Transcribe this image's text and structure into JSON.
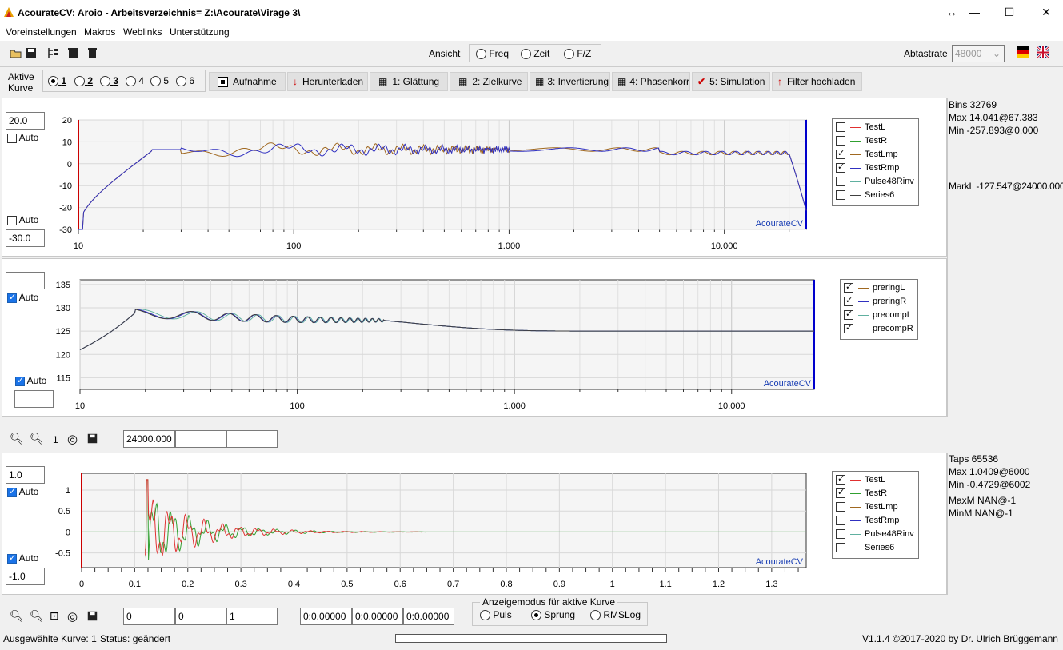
{
  "window": {
    "title": "AcourateCV:  Aroio   -   Arbeitsverzeichnis= Z:\\Acourate\\Virage 3\\",
    "controls": {
      "restore": "↔",
      "minimize": "—",
      "maximize": "☐",
      "close": "✕"
    }
  },
  "menu": [
    "Voreinstellungen",
    "Makros",
    "Weblinks",
    "Unterstützung"
  ],
  "toolbar": {
    "ansicht_label": "Ansicht",
    "ansicht_options": [
      "Freq",
      "Zeit",
      "F/Z"
    ],
    "abtastrate_label": "Abtastrate",
    "abtastrate_value": "48000"
  },
  "curve_select": {
    "label_line1": "Aktive",
    "label_line2": "Kurve",
    "options": [
      "1",
      "2",
      "3",
      "4",
      "5",
      "6"
    ],
    "selected": "1"
  },
  "steps": [
    "Aufnahme",
    "Herunterladen",
    "1: Glättung",
    "2: Zielkurve",
    "3: Invertierung",
    "4: Phasenkorr",
    "5: Simulation",
    "Filter hochladen"
  ],
  "plot1": {
    "ymax_value": "20.0",
    "ymin_value": "-30.0",
    "auto_label": "Auto",
    "watermark": "AcourateCV",
    "yticks": [
      "20",
      "10",
      "0",
      "-10",
      "-20",
      "-30"
    ],
    "xticks": [
      "10",
      "100",
      "1.000",
      "10.000"
    ],
    "legend": [
      {
        "name": "TestL",
        "color": "#e03030",
        "checked": false
      },
      {
        "name": "TestR",
        "color": "#30a030",
        "checked": false
      },
      {
        "name": "TestLmp",
        "color": "#a06820",
        "checked": true
      },
      {
        "name": "TestRmp",
        "color": "#3030c0",
        "checked": true
      },
      {
        "name": "Pulse48Rinv",
        "color": "#60b0a0",
        "checked": false
      },
      {
        "name": "Series6",
        "color": "#404040",
        "checked": false
      }
    ],
    "info": [
      "Bins 32769",
      "Max 14.041@67.383",
      "Min -257.893@0.000",
      "MarkL -127.547@24000.000"
    ]
  },
  "plot2": {
    "auto_label": "Auto",
    "watermark": "AcourateCV",
    "yticks": [
      "135",
      "130",
      "125",
      "120",
      "115"
    ],
    "xticks": [
      "10",
      "100",
      "1.000",
      "10.000"
    ],
    "legend": [
      {
        "name": "preringL",
        "color": "#a06820",
        "checked": true
      },
      {
        "name": "preringR",
        "color": "#3030c0",
        "checked": true
      },
      {
        "name": "precompL",
        "color": "#60b0a0",
        "checked": true
      },
      {
        "name": "precompR",
        "color": "#404040",
        "checked": true
      }
    ]
  },
  "mid_toolbar": {
    "zoom_level": "1",
    "fields": [
      "24000.000",
      "",
      ""
    ]
  },
  "plot3": {
    "ymax_value": "1.0",
    "ymin_value": "-1.0",
    "auto_label": "Auto",
    "watermark": "AcourateCV",
    "yticks": [
      "1",
      "0.5",
      "0",
      "-0.5"
    ],
    "xticks": [
      "0",
      "0.1",
      "0.2",
      "0.3",
      "0.4",
      "0.5",
      "0.6",
      "0.7",
      "0.8",
      "0.9",
      "1",
      "1.1",
      "1.2",
      "1.3"
    ],
    "legend": [
      {
        "name": "TestL",
        "color": "#e03030",
        "checked": true
      },
      {
        "name": "TestR",
        "color": "#30a030",
        "checked": true
      },
      {
        "name": "TestLmp",
        "color": "#a06820",
        "checked": false
      },
      {
        "name": "TestRmp",
        "color": "#3030c0",
        "checked": false
      },
      {
        "name": "Pulse48Rinv",
        "color": "#60b0a0",
        "checked": false
      },
      {
        "name": "Series6",
        "color": "#404040",
        "checked": false
      }
    ],
    "info": [
      "Taps 65536",
      "Max 1.0409@6000",
      "Min -0.4729@6002",
      "MaxM NAN@-1",
      "MinM NAN@-1"
    ]
  },
  "bottom_toolbar": {
    "fields1": [
      "0",
      "0",
      "1"
    ],
    "fields2": [
      "0:0.00000",
      "0:0.00000",
      "0:0.00000"
    ],
    "mode_group_label": "Anzeigemodus für aktive Kurve",
    "modes": [
      "Puls",
      "Sprung",
      "RMSLog"
    ],
    "selected_mode": "Sprung"
  },
  "status": {
    "selected_curve": "Ausgewählte Kurve: 1",
    "status_text": "Status: geändert",
    "version": "V1.1.4 ©2017-2020 by Dr. Ulrich Brüggemann"
  }
}
